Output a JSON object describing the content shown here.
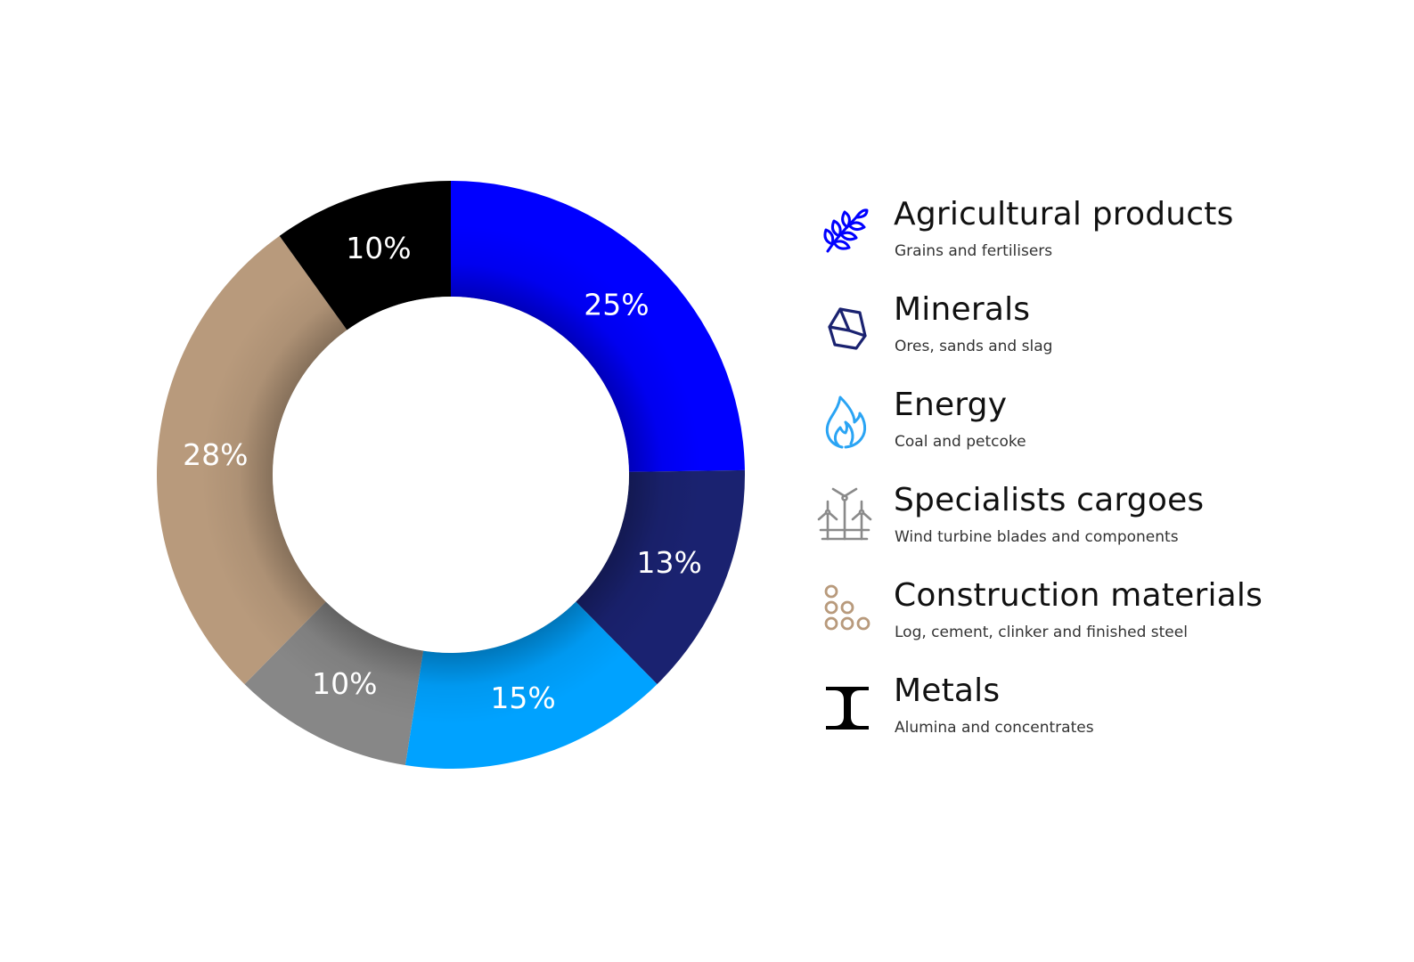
{
  "chart_data": {
    "type": "pie",
    "donut": true,
    "categories": [
      "Agricultural products",
      "Minerals",
      "Energy",
      "Specialists cargoes",
      "Construction materials",
      "Metals"
    ],
    "values": [
      25,
      13,
      15,
      10,
      28,
      10
    ],
    "labels": [
      "25%",
      "13%",
      "15%",
      "10%",
      "28%",
      "10%"
    ],
    "colors": [
      "#0000ff",
      "#1a2270",
      "#00a2ff",
      "#878787",
      "#b89a7c",
      "#000000"
    ],
    "start_angle_deg": 0,
    "direction": "clockwise"
  },
  "legend": [
    {
      "title": "Agricultural products",
      "subtitle": "Grains and fertilisers",
      "icon": "wheat-icon",
      "color": "#0000ff"
    },
    {
      "title": "Minerals",
      "subtitle": "Ores, sands and slag",
      "icon": "mineral-rock-icon",
      "color": "#1a2270"
    },
    {
      "title": "Energy",
      "subtitle": "Coal and petcoke",
      "icon": "flame-icon",
      "color": "#2aa4f4"
    },
    {
      "title": "Specialists cargoes",
      "subtitle": "Wind turbine blades and components",
      "icon": "wind-turbine-icon",
      "color": "#8a8a8a"
    },
    {
      "title": "Construction materials",
      "subtitle": "Log, cement, clinker and finished steel",
      "icon": "log-pile-icon",
      "color": "#b89a7c"
    },
    {
      "title": "Metals",
      "subtitle": "Alumina and concentrates",
      "icon": "steel-beam-icon",
      "color": "#000000"
    }
  ]
}
